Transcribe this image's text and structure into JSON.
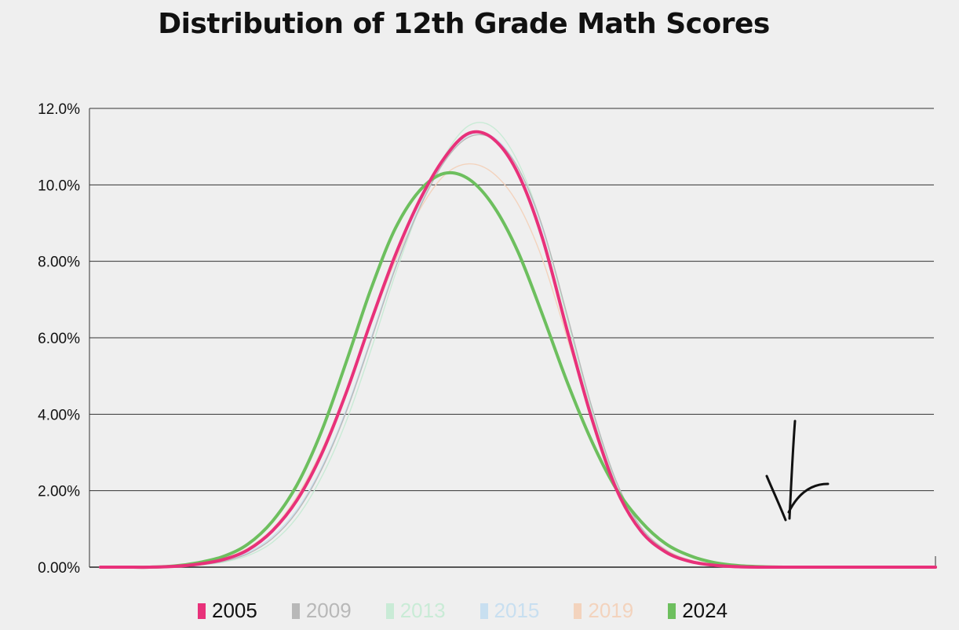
{
  "chart_data": {
    "type": "line",
    "title": "Distribution of 12th Grade Math Scores",
    "xlabel": "",
    "ylabel": "",
    "y_ticks": [
      "12.0%",
      "10.0%",
      "8.00%",
      "6.00%",
      "4.00%",
      "2.00%",
      "0.00%"
    ],
    "ylim": [
      0,
      12
    ],
    "grid": true,
    "legend_position": "bottom",
    "x": [
      0,
      5,
      10,
      15,
      20,
      25,
      30,
      35,
      40,
      45,
      50,
      55,
      60,
      65,
      70,
      75,
      80,
      85,
      90,
      95,
      100,
      105,
      110,
      115,
      120,
      125,
      130,
      135,
      140,
      145,
      150,
      155,
      160,
      165,
      170
    ],
    "series": [
      {
        "name": "2005",
        "color": "#e8317a",
        "emphasis": true,
        "values": [
          0,
          0,
          0,
          0.02,
          0.08,
          0.2,
          0.45,
          0.95,
          1.75,
          2.95,
          4.55,
          6.4,
          8.15,
          9.6,
          10.7,
          11.35,
          11.2,
          10.3,
          8.6,
          6.2,
          3.9,
          2.05,
          0.95,
          0.4,
          0.15,
          0.05,
          0.01,
          0,
          0,
          0,
          0,
          0,
          0,
          0,
          0
        ]
      },
      {
        "name": "2009",
        "color": "#b8b8b8",
        "emphasis": false,
        "values": [
          0,
          0,
          0,
          0.01,
          0.06,
          0.15,
          0.35,
          0.75,
          1.45,
          2.55,
          4.05,
          5.9,
          7.8,
          9.4,
          10.6,
          11.25,
          11.2,
          10.45,
          8.9,
          6.6,
          4.2,
          2.25,
          1.05,
          0.45,
          0.18,
          0.06,
          0.02,
          0,
          0,
          0,
          0,
          0,
          0,
          0,
          0
        ]
      },
      {
        "name": "2013",
        "color": "#c9ebd6",
        "emphasis": false,
        "values": [
          0,
          0,
          0,
          0.01,
          0.05,
          0.13,
          0.3,
          0.65,
          1.3,
          2.35,
          3.8,
          5.65,
          7.65,
          9.4,
          10.75,
          11.55,
          11.5,
          10.6,
          8.9,
          6.5,
          4.1,
          2.2,
          1.0,
          0.42,
          0.16,
          0.05,
          0.01,
          0,
          0,
          0,
          0,
          0,
          0,
          0,
          0
        ]
      },
      {
        "name": "2015",
        "color": "#c8dff0",
        "emphasis": false,
        "values": [
          0,
          0,
          0,
          0.01,
          0.06,
          0.16,
          0.38,
          0.8,
          1.5,
          2.6,
          4.1,
          5.95,
          7.85,
          9.45,
          10.65,
          11.3,
          11.25,
          10.45,
          8.85,
          6.55,
          4.2,
          2.25,
          1.05,
          0.45,
          0.17,
          0.06,
          0.02,
          0,
          0,
          0,
          0,
          0,
          0,
          0,
          0
        ]
      },
      {
        "name": "2019",
        "color": "#f3d3bd",
        "emphasis": false,
        "values": [
          0,
          0,
          0,
          0.02,
          0.09,
          0.22,
          0.5,
          1.0,
          1.85,
          3.05,
          4.6,
          6.35,
          8.0,
          9.35,
          10.25,
          10.55,
          10.3,
          9.5,
          8.05,
          6.0,
          3.95,
          2.2,
          1.05,
          0.47,
          0.19,
          0.07,
          0.02,
          0,
          0,
          0,
          0,
          0,
          0,
          0,
          0
        ]
      },
      {
        "name": "2024",
        "color": "#6dbf5e",
        "emphasis": true,
        "values": [
          0,
          0,
          0,
          0.03,
          0.12,
          0.28,
          0.6,
          1.2,
          2.15,
          3.55,
          5.35,
          7.25,
          8.85,
          9.85,
          10.3,
          10.15,
          9.45,
          8.25,
          6.6,
          4.85,
          3.3,
          2.05,
          1.2,
          0.62,
          0.3,
          0.12,
          0.04,
          0.01,
          0,
          0,
          0,
          0,
          0,
          0,
          0
        ]
      }
    ]
  },
  "annotation": {
    "arrow_color": "#111111"
  }
}
